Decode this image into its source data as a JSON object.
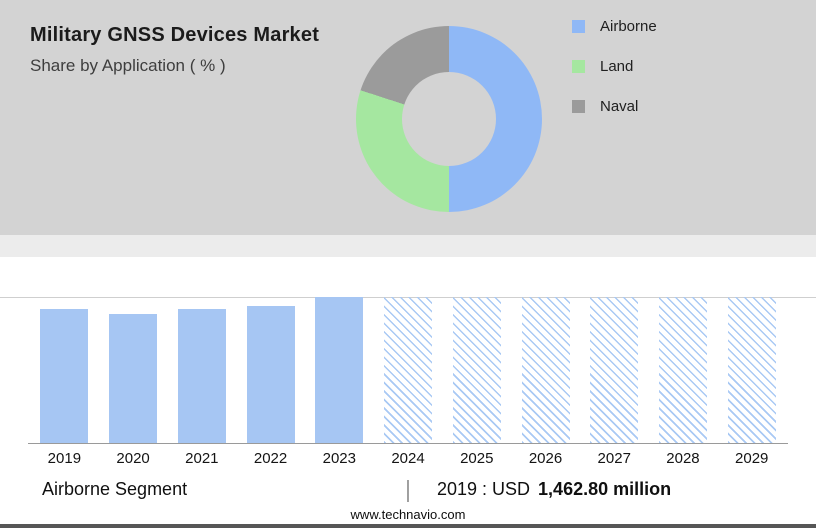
{
  "header": {
    "title": "Military GNSS Devices Market",
    "subtitle": "Share by Application ( % )"
  },
  "legend": {
    "items": [
      {
        "label": "Airborne",
        "color": "#8FB8F6"
      },
      {
        "label": "Land",
        "color": "#A5E7A0"
      },
      {
        "label": "Naval",
        "color": "#9B9B9B"
      }
    ]
  },
  "footer": {
    "segment": "Airborne Segment",
    "separator": "|",
    "stat_prefix": "2019 : USD",
    "stat_value": "1,462.80 million",
    "website": "www.technavio.com"
  },
  "colors": {
    "panel_gray": "#D3D3D3",
    "bar_blue": "#A6C6F3",
    "hatch_blue": "#A9C9F4"
  },
  "chart_data": [
    {
      "type": "pie",
      "donut": true,
      "title": "Military GNSS Devices Market — Share by Application ( % )",
      "labels": [
        "Airborne",
        "Land",
        "Naval"
      ],
      "values": [
        50,
        30,
        20
      ],
      "colors": [
        "#8FB8F6",
        "#A5E7A0",
        "#9B9B9B"
      ],
      "legend_position": "right",
      "start_angle_deg": 0,
      "direction": "clockwise"
    },
    {
      "type": "bar",
      "title": "Airborne Segment (USD million)",
      "categories": [
        "2019",
        "2020",
        "2021",
        "2022",
        "2023",
        "2024",
        "2025",
        "2026",
        "2027",
        "2028",
        "2029"
      ],
      "series": [
        {
          "name": "Airborne Segment",
          "values": [
            1462.8,
            1410,
            1465,
            1495,
            1595,
            null,
            null,
            null,
            null,
            null,
            null
          ]
        }
      ],
      "known_values": {
        "2019": 1462.8
      },
      "forecast_years": [
        "2024",
        "2025",
        "2026",
        "2027",
        "2028",
        "2029"
      ],
      "forecast_style": "diagonal-hatch-full-height",
      "xlabel": "",
      "ylabel": "",
      "grid": false,
      "note": "Values for 2020-2023 estimated from bar heights; forecast years drawn as full-height hatched bars"
    }
  ]
}
